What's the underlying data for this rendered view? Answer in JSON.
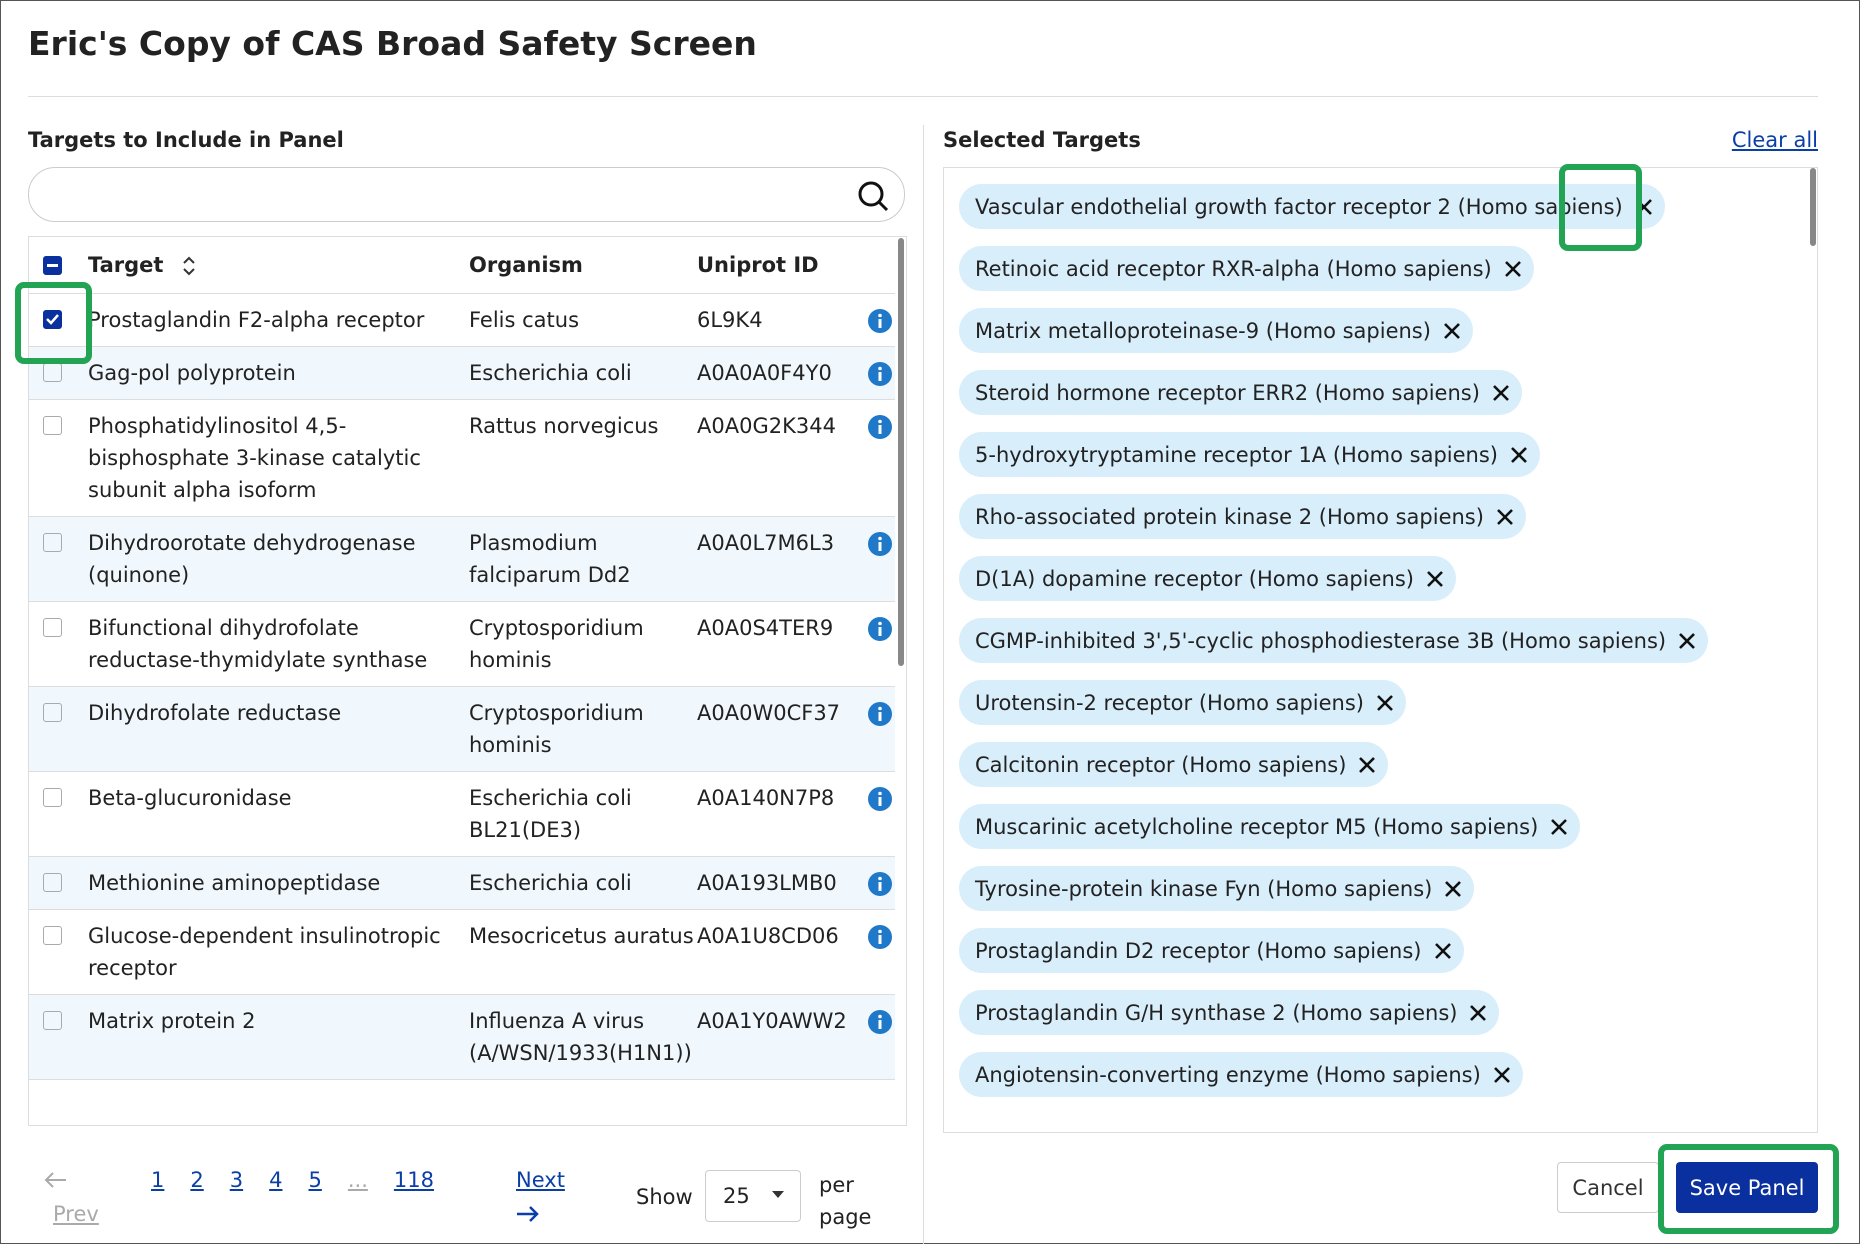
{
  "title": "Eric's Copy of CAS Broad Safety Screen",
  "left": {
    "heading": "Targets to Include in Panel",
    "columns": [
      "Target",
      "Organism",
      "Uniprot ID"
    ],
    "rows": [
      {
        "target": "Prostaglandin F2-alpha receptor",
        "organism": "Felis catus",
        "uniprot": "6L9K4",
        "checked": true
      },
      {
        "target": "Gag-pol polyprotein",
        "organism": "Escherichia coli",
        "uniprot": "A0A0A0F4Y0",
        "checked": false
      },
      {
        "target": "Phosphatidylinositol 4,5-bisphosphate 3-kinase catalytic subunit alpha isoform",
        "organism": "Rattus norvegicus",
        "uniprot": "A0A0G2K344",
        "checked": false
      },
      {
        "target": "Dihydroorotate dehydrogenase (quinone)",
        "organism": "Plasmodium falciparum Dd2",
        "uniprot": "A0A0L7M6L3",
        "checked": false
      },
      {
        "target": "Bifunctional dihydrofolate reductase-thymidylate synthase",
        "organism": "Cryptosporidium hominis",
        "uniprot": "A0A0S4TER9",
        "checked": false
      },
      {
        "target": "Dihydrofolate reductase",
        "organism": "Cryptosporidium hominis",
        "uniprot": "A0A0W0CF37",
        "checked": false
      },
      {
        "target": "Beta-glucuronidase",
        "organism": "Escherichia coli BL21(DE3)",
        "uniprot": "A0A140N7P8",
        "checked": false
      },
      {
        "target": "Methionine aminopeptidase",
        "organism": "Escherichia coli",
        "uniprot": "A0A193LMB0",
        "checked": false
      },
      {
        "target": "Glucose-dependent insulinotropic receptor",
        "organism": "Mesocricetus auratus",
        "uniprot": "A0A1U8CD06",
        "checked": false
      },
      {
        "target": "Matrix protein 2",
        "organism": "Influenza A virus (A/WSN/1933(H1N1))",
        "uniprot": "A0A1Y0AWW2",
        "checked": false
      }
    ],
    "pagination": {
      "prev": "Prev",
      "pages": [
        "1",
        "2",
        "3",
        "4",
        "5"
      ],
      "ellipsis": "...",
      "last": "118",
      "next": "Next",
      "show": "Show",
      "per_page": "25",
      "per_page_suffix": "per page"
    }
  },
  "right": {
    "heading": "Selected Targets",
    "clear_all": "Clear all",
    "chips": [
      "Vascular endothelial growth factor receptor 2 (Homo sapiens)",
      "Retinoic acid receptor RXR-alpha (Homo sapiens)",
      "Matrix metalloproteinase-9 (Homo sapiens)",
      "Steroid hormone receptor ERR2 (Homo sapiens)",
      "5-hydroxytryptamine receptor 1A (Homo sapiens)",
      "Rho-associated protein kinase 2 (Homo sapiens)",
      "D(1A) dopamine receptor (Homo sapiens)",
      "CGMP-inhibited 3',5'-cyclic phosphodiesterase 3B (Homo sapiens)",
      "Urotensin-2 receptor (Homo sapiens)",
      "Calcitonin receptor (Homo sapiens)",
      "Muscarinic acetylcholine receptor M5 (Homo sapiens)",
      "Tyrosine-protein kinase Fyn (Homo sapiens)",
      "Prostaglandin D2 receptor (Homo sapiens)",
      "Prostaglandin G/H synthase 2 (Homo sapiens)",
      "Angiotensin-converting enzyme (Homo sapiens)"
    ]
  },
  "buttons": {
    "cancel": "Cancel",
    "save": "Save Panel"
  }
}
